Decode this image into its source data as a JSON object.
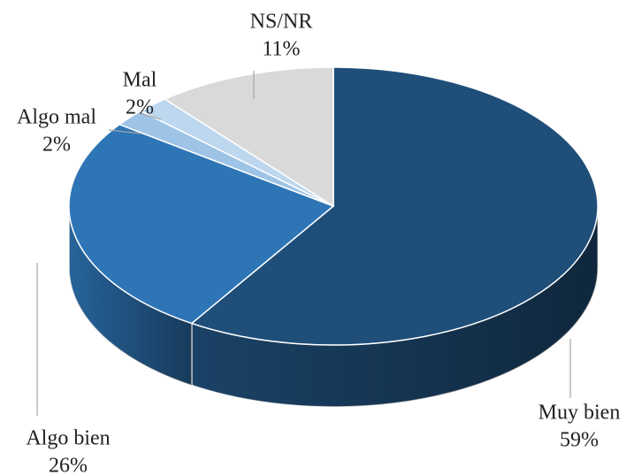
{
  "chart_data": {
    "type": "pie",
    "categories": [
      "Muy bien",
      "Algo bien",
      "Algo mal",
      "Mal",
      "NS/NR"
    ],
    "values": [
      59,
      26,
      2,
      2,
      11
    ],
    "value_labels": [
      "59%",
      "26%",
      "2%",
      "2%",
      "11%"
    ],
    "colors": [
      "#1f4e79",
      "#2e75b6",
      "#9dc3e6",
      "#bdd7ee",
      "#d9d9d9"
    ]
  }
}
